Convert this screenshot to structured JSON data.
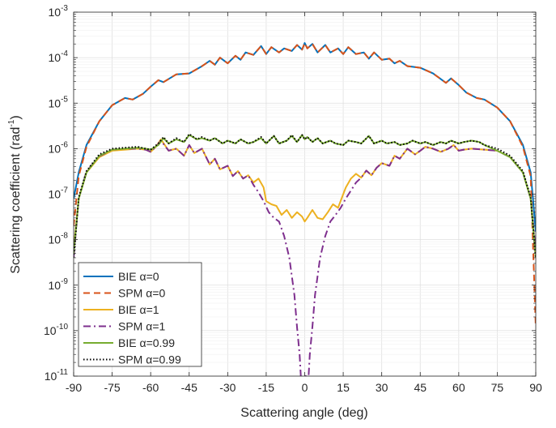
{
  "chart_data": {
    "type": "line",
    "xlabel": "Scattering angle (deg)",
    "ylabel_text": "Scattering coefficient (rad",
    "ylabel_sup": "-1",
    "ylabel_close": ")",
    "xlim": [
      -90,
      90
    ],
    "ylim": [
      1e-11,
      0.001
    ],
    "yscale": "log",
    "grid": true,
    "legend_position": "bottom-left",
    "x_ticks": [
      -90,
      -75,
      -60,
      -45,
      -30,
      -15,
      0,
      15,
      30,
      45,
      60,
      75,
      90
    ],
    "y_ticks": [
      {
        "base": "10",
        "exp": "-11",
        "value": 1e-11
      },
      {
        "base": "10",
        "exp": "-10",
        "value": 1e-10
      },
      {
        "base": "10",
        "exp": "-9",
        "value": 1e-09
      },
      {
        "base": "10",
        "exp": "-8",
        "value": 1e-08
      },
      {
        "base": "10",
        "exp": "-7",
        "value": 1e-07
      },
      {
        "base": "10",
        "exp": "-6",
        "value": 1e-06
      },
      {
        "base": "10",
        "exp": "-5",
        "value": 1e-05
      },
      {
        "base": "10",
        "exp": "-4",
        "value": 0.0001
      },
      {
        "base": "10",
        "exp": "-3",
        "value": 0.001
      }
    ],
    "series": [
      {
        "name": "BIE α=0",
        "method": "BIE",
        "alpha_label": "α=0",
        "color": "#0072BD",
        "style": "solid",
        "x": [
          -90,
          -88,
          -85,
          -80,
          -75,
          -70,
          -67,
          -63,
          -60,
          -57,
          -55,
          -50,
          -45,
          -40,
          -37,
          -35,
          -33,
          -30,
          -27,
          -25,
          -23,
          -20,
          -17,
          -15,
          -13,
          -10,
          -8,
          -5,
          -3,
          -1,
          0,
          1,
          3,
          5,
          8,
          10,
          13,
          15,
          17,
          20,
          23,
          25,
          27,
          30,
          33,
          35,
          37,
          40,
          45,
          50,
          55,
          57,
          60,
          63,
          67,
          70,
          75,
          80,
          85,
          88,
          90
        ],
        "y": [
          8e-08,
          3e-07,
          1.2e-06,
          4e-06,
          9e-06,
          1.3e-05,
          1.2e-05,
          1.6e-05,
          2.3e-05,
          3.2e-05,
          2.9e-05,
          4.3e-05,
          4.5e-05,
          6.5e-05,
          8.5e-05,
          7e-05,
          0.0001,
          7.5e-05,
          0.00011,
          9e-05,
          0.00013,
          0.000115,
          0.00018,
          0.00012,
          0.00017,
          0.00013,
          0.00016,
          0.00014,
          0.00019,
          0.00015,
          0.00021,
          0.00016,
          0.0002,
          0.00013,
          0.00019,
          0.00013,
          0.00016,
          0.00012,
          0.00017,
          0.00012,
          0.00013,
          9.5e-05,
          0.00013,
          9e-05,
          9.5e-05,
          7.5e-05,
          8.5e-05,
          6.5e-05,
          6e-05,
          4.5e-05,
          2.8e-05,
          3.5e-05,
          2.5e-05,
          1.7e-05,
          1.3e-05,
          1.2e-05,
          8e-06,
          4e-06,
          1.2e-06,
          3e-07,
          1.5e-08
        ]
      },
      {
        "name": "SPM α=0",
        "method": "SPM",
        "alpha_label": "α=0",
        "color": "#D95319",
        "style": "dashed",
        "x": [
          -90,
          -88,
          -85,
          -80,
          -75,
          -70,
          -67,
          -63,
          -60,
          -57,
          -55,
          -50,
          -45,
          -40,
          -37,
          -35,
          -33,
          -30,
          -27,
          -25,
          -23,
          -20,
          -17,
          -15,
          -13,
          -10,
          -8,
          -5,
          -3,
          -1,
          0,
          1,
          3,
          5,
          8,
          10,
          13,
          15,
          17,
          20,
          23,
          25,
          27,
          30,
          33,
          35,
          37,
          40,
          45,
          50,
          55,
          57,
          60,
          63,
          67,
          70,
          75,
          80,
          85,
          88,
          90
        ],
        "y": [
          2e-08,
          2.5e-07,
          1.1e-06,
          4e-06,
          9e-06,
          1.3e-05,
          1.2e-05,
          1.6e-05,
          2.3e-05,
          3.2e-05,
          2.9e-05,
          4.3e-05,
          4.5e-05,
          6.5e-05,
          8.5e-05,
          7e-05,
          0.0001,
          7.5e-05,
          0.00011,
          9e-05,
          0.00013,
          0.000115,
          0.00018,
          0.00012,
          0.00017,
          0.00013,
          0.00016,
          0.00014,
          0.00019,
          0.00015,
          0.00021,
          0.00016,
          0.0002,
          0.00013,
          0.00019,
          0.00013,
          0.00016,
          0.00012,
          0.00017,
          0.00012,
          0.00013,
          9.5e-05,
          0.00013,
          9e-05,
          9.5e-05,
          7.5e-05,
          8.5e-05,
          6.5e-05,
          6e-05,
          4.5e-05,
          2.8e-05,
          3.5e-05,
          2.5e-05,
          1.7e-05,
          1.3e-05,
          1.2e-05,
          8e-06,
          4e-06,
          1.1e-06,
          2.5e-07,
          1.2e-10
        ]
      },
      {
        "name": "BIE α=1",
        "method": "BIE",
        "alpha_label": "α=1",
        "color": "#EDB120",
        "style": "solid",
        "x": [
          -90,
          -88,
          -85,
          -80,
          -75,
          -70,
          -65,
          -62,
          -60,
          -58,
          -56,
          -53,
          -50,
          -47,
          -45,
          -43,
          -40,
          -37,
          -35,
          -33,
          -30,
          -28,
          -26,
          -24,
          -22,
          -20,
          -18,
          -16,
          -15,
          -13,
          -11,
          -9,
          -7,
          -5,
          -3,
          -1,
          0,
          1,
          3,
          5,
          7,
          9,
          11,
          13,
          15,
          16,
          18,
          20,
          22,
          24,
          26,
          28,
          30,
          33,
          35,
          37,
          40,
          43,
          45,
          47,
          50,
          53,
          56,
          58,
          60,
          62,
          65,
          70,
          75,
          80,
          85,
          88,
          90
        ],
        "y": [
          6e-09,
          8e-08,
          3e-07,
          6.5e-07,
          9e-07,
          9.5e-07,
          1e-06,
          9.5e-07,
          8.5e-07,
          1.1e-06,
          1.6e-06,
          9e-07,
          1e-06,
          7e-07,
          1.2e-06,
          8e-07,
          1e-06,
          4.5e-07,
          6e-07,
          3.5e-07,
          4.2e-07,
          2.5e-07,
          3.2e-07,
          2.2e-07,
          2.6e-07,
          1.8e-07,
          2.2e-07,
          1.4e-07,
          7e-08,
          6e-08,
          5.5e-08,
          3.5e-08,
          4.5e-08,
          3e-08,
          4e-08,
          3.2e-08,
          2.5e-08,
          3e-08,
          4.5e-08,
          3e-08,
          2.8e-08,
          4e-08,
          6e-08,
          5e-08,
          1e-07,
          1.4e-07,
          2.2e-07,
          2.8e-07,
          2.3e-07,
          3.3e-07,
          2.6e-07,
          3.8e-07,
          4.8e-07,
          4.2e-07,
          7e-07,
          6e-07,
          1e-06,
          7.5e-07,
          9e-07,
          1.1e-06,
          1e-06,
          8.5e-07,
          1e-06,
          1.2e-06,
          9e-07,
          9.5e-07,
          1e-06,
          9.5e-07,
          9e-07,
          6.5e-07,
          3e-07,
          8e-08,
          4e-09
        ]
      },
      {
        "name": "SPM α=1",
        "method": "SPM",
        "alpha_label": "α=1",
        "color": "#7E2F8E",
        "style": "dashdot",
        "x": [
          -90,
          -88,
          -85,
          -80,
          -75,
          -70,
          -65,
          -62,
          -60,
          -58,
          -56,
          -53,
          -50,
          -47,
          -45,
          -43,
          -40,
          -37,
          -35,
          -33,
          -30,
          -28,
          -26,
          -24,
          -22,
          -20,
          -18,
          -16,
          -14,
          -12,
          -10,
          -8,
          -6,
          -4,
          -3,
          -2,
          -1.5,
          1.5,
          2,
          3,
          4,
          6,
          8,
          10,
          12,
          14,
          16,
          18,
          20,
          22,
          24,
          26,
          28,
          30,
          33,
          35,
          37,
          40,
          43,
          45,
          47,
          50,
          53,
          56,
          58,
          60,
          62,
          65,
          70,
          75,
          80,
          85,
          88,
          90
        ],
        "y": [
          4e-09,
          8e-08,
          3.2e-07,
          6.8e-07,
          9.5e-07,
          1e-06,
          1e-06,
          9.5e-07,
          8.5e-07,
          1.1e-06,
          1.5e-06,
          9e-07,
          1e-06,
          7e-07,
          1.2e-06,
          8e-07,
          1e-06,
          4.5e-07,
          6e-07,
          3.5e-07,
          4.2e-07,
          2.5e-07,
          3.2e-07,
          2.2e-07,
          2.6e-07,
          1.6e-07,
          1.1e-07,
          7e-08,
          4e-08,
          3e-08,
          2.5e-08,
          1.2e-08,
          4e-09,
          6e-10,
          1.2e-10,
          3e-11,
          1e-11,
          1e-11,
          3e-11,
          1.2e-10,
          6e-10,
          4e-09,
          1.2e-08,
          2.5e-08,
          3.5e-08,
          5e-08,
          8e-08,
          1.2e-07,
          1.8e-07,
          2.3e-07,
          3.3e-07,
          2.6e-07,
          3.8e-07,
          4.8e-07,
          4.2e-07,
          7e-07,
          6e-07,
          1e-06,
          7.5e-07,
          9e-07,
          1.1e-06,
          1e-06,
          8.5e-07,
          1e-06,
          1.2e-06,
          9e-07,
          9.5e-07,
          1e-06,
          9.5e-07,
          9e-07,
          6.5e-07,
          3e-07,
          8e-08,
          6e-09
        ]
      },
      {
        "name": "BIE α=0.99",
        "method": "BIE",
        "alpha_label": "α=0.99",
        "color": "#77AC30",
        "style": "solid",
        "x": [
          -90,
          -88,
          -85,
          -80,
          -75,
          -70,
          -65,
          -62,
          -60,
          -57,
          -55,
          -53,
          -50,
          -47,
          -45,
          -42,
          -40,
          -37,
          -35,
          -32,
          -30,
          -27,
          -25,
          -22,
          -20,
          -17,
          -15,
          -12,
          -10,
          -7,
          -5,
          -3,
          -1,
          0,
          1,
          3,
          5,
          7,
          10,
          12,
          15,
          17,
          20,
          22,
          25,
          27,
          30,
          32,
          35,
          37,
          40,
          42,
          45,
          47,
          50,
          53,
          55,
          57,
          60,
          62,
          65,
          68,
          70,
          75,
          80,
          85,
          88,
          90
        ],
        "y": [
          5e-09,
          8e-08,
          3e-07,
          7e-07,
          9.5e-07,
          1e-06,
          1.05e-06,
          1e-06,
          9.5e-07,
          1.2e-06,
          1.7e-06,
          1.3e-06,
          1.6e-06,
          1.4e-06,
          2e-06,
          1.6e-06,
          1.7e-06,
          1.5e-06,
          1.7e-06,
          1.3e-06,
          1.5e-06,
          1.3e-06,
          1.6e-06,
          1.3e-06,
          1.4e-06,
          1.7e-06,
          1.3e-06,
          1.9e-06,
          1.3e-06,
          1.5e-06,
          1.9e-06,
          1.4e-06,
          2e-06,
          1.6e-06,
          1.8e-06,
          1.4e-06,
          1.7e-06,
          1.3e-06,
          1.5e-06,
          1.3e-06,
          1.2e-06,
          1.5e-06,
          1.4e-06,
          1.3e-06,
          1.9e-06,
          1.3e-06,
          1.5e-06,
          1.3e-06,
          1.4e-06,
          1.2e-06,
          1.3e-06,
          1.5e-06,
          1.3e-06,
          1.4e-06,
          1.2e-06,
          1.4e-06,
          1.3e-06,
          1.5e-06,
          1.3e-06,
          1.4e-06,
          1.5e-06,
          1.4e-06,
          1.2e-06,
          9e-07,
          6.5e-07,
          3e-07,
          8e-08,
          4e-09
        ]
      },
      {
        "name": "SPM α=0.99",
        "method": "SPM",
        "alpha_label": "α=0.99",
        "color": "#000000",
        "style": "dotted",
        "x": [
          -90,
          -88,
          -85,
          -80,
          -75,
          -70,
          -65,
          -62,
          -60,
          -57,
          -55,
          -53,
          -50,
          -47,
          -45,
          -42,
          -40,
          -37,
          -35,
          -32,
          -30,
          -27,
          -25,
          -22,
          -20,
          -17,
          -15,
          -12,
          -10,
          -7,
          -5,
          -3,
          -1,
          0,
          1,
          3,
          5,
          7,
          10,
          12,
          15,
          17,
          20,
          22,
          25,
          27,
          30,
          32,
          35,
          37,
          40,
          42,
          45,
          47,
          50,
          53,
          55,
          57,
          60,
          62,
          65,
          68,
          70,
          75,
          80,
          85,
          88,
          90
        ],
        "y": [
          4e-09,
          8.5e-08,
          3.2e-07,
          7.5e-07,
          1e-06,
          1.05e-06,
          1.1e-06,
          1e-06,
          9.5e-07,
          1.3e-06,
          1.8e-06,
          1.3e-06,
          1.7e-06,
          1.4e-06,
          2.1e-06,
          1.6e-06,
          1.8e-06,
          1.5e-06,
          1.7e-06,
          1.3e-06,
          1.5e-06,
          1.3e-06,
          1.6e-06,
          1.3e-06,
          1.4e-06,
          1.8e-06,
          1.3e-06,
          1.9e-06,
          1.3e-06,
          1.5e-06,
          2e-06,
          1.4e-06,
          2e-06,
          1.6e-06,
          1.8e-06,
          1.4e-06,
          1.7e-06,
          1.3e-06,
          1.5e-06,
          1.3e-06,
          1.2e-06,
          1.5e-06,
          1.4e-06,
          1.3e-06,
          1.9e-06,
          1.3e-06,
          1.5e-06,
          1.3e-06,
          1.4e-06,
          1.2e-06,
          1.3e-06,
          1.5e-06,
          1.3e-06,
          1.4e-06,
          1.2e-06,
          1.4e-06,
          1.3e-06,
          1.5e-06,
          1.3e-06,
          1.4e-06,
          1.5e-06,
          1.4e-06,
          1.2e-06,
          1e-06,
          7e-07,
          3.2e-07,
          8.5e-08,
          4e-09
        ]
      }
    ]
  }
}
